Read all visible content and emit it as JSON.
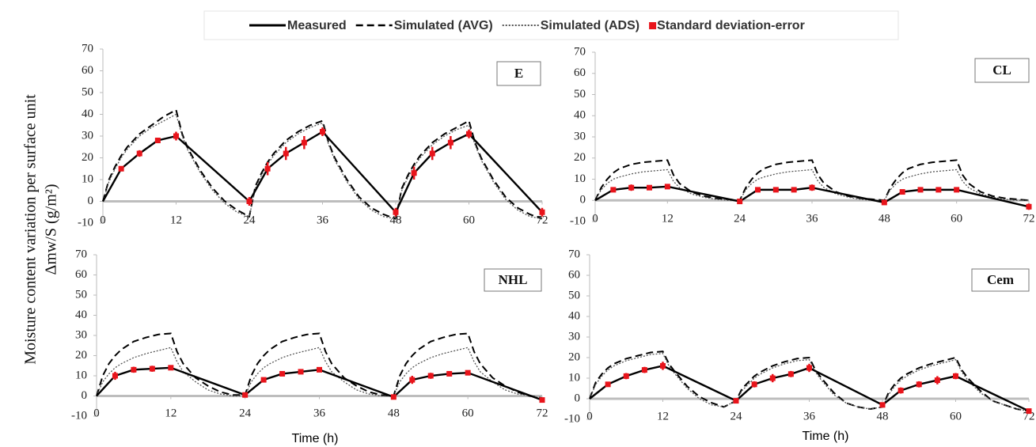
{
  "chart_data": [
    {
      "type": "line",
      "panel_label": "E",
      "ylabel": [
        "Moisture content variation per surface unit",
        "Δmw/S (g/m²)"
      ],
      "xlim": [
        0,
        72
      ],
      "xticks": [
        0,
        12,
        24,
        36,
        48,
        60,
        72
      ],
      "ylim": [
        -10,
        70
      ],
      "yticks": [
        -10,
        0,
        10,
        20,
        30,
        40,
        50,
        60,
        70
      ],
      "x": [
        0,
        1,
        2,
        3,
        4,
        6,
        8,
        10,
        12,
        13,
        14,
        16,
        18,
        20,
        22,
        24,
        25,
        26,
        27,
        28,
        30,
        32,
        34,
        36,
        37,
        38,
        40,
        42,
        44,
        46,
        48,
        49,
        50,
        51,
        52,
        54,
        56,
        58,
        60,
        61,
        62,
        64,
        66,
        68,
        70,
        72
      ],
      "series": [
        {
          "name": "Measured",
          "color": "#000000",
          "style": "solid",
          "x": [
            0,
            3,
            6,
            9,
            12,
            24,
            27,
            30,
            33,
            36,
            48,
            51,
            54,
            57,
            60,
            72
          ],
          "values": [
            0,
            15,
            22,
            28,
            30,
            0,
            15,
            22,
            27,
            32,
            -5,
            13,
            22,
            27,
            31,
            -5
          ]
        },
        {
          "name": "Simulated (AVG)",
          "color": "#000000",
          "style": "dashed",
          "values": [
            0,
            10,
            16,
            21,
            25,
            31,
            35,
            39,
            42,
            31,
            24,
            14,
            6,
            0,
            -4,
            -7,
            7,
            13,
            18,
            22,
            28,
            32,
            35,
            37,
            27,
            20,
            10,
            2,
            -3,
            -6,
            -8,
            6,
            12,
            17,
            21,
            27,
            31,
            34,
            37,
            27,
            20,
            10,
            2,
            -3,
            -6,
            -8
          ]
        },
        {
          "name": "Simulated (ADS)",
          "color": "#555555",
          "style": "dotted",
          "values": [
            0,
            9,
            15,
            20,
            24,
            30,
            34,
            37,
            40,
            30,
            23,
            13,
            5,
            -1,
            -5,
            -7,
            6,
            12,
            17,
            21,
            27,
            31,
            34,
            36,
            26,
            19,
            9,
            1,
            -4,
            -7,
            -8,
            5,
            11,
            16,
            20,
            26,
            30,
            33,
            35,
            26,
            19,
            9,
            1,
            -4,
            -7,
            -8
          ]
        },
        {
          "name": "Standard deviation-error",
          "color": "#e8141b",
          "style": "errorbar",
          "x": [
            0,
            3,
            6,
            9,
            12,
            24,
            27,
            30,
            33,
            36,
            48,
            51,
            54,
            57,
            60,
            72
          ],
          "values": [
            0,
            1,
            1.5,
            1,
            2,
            2,
            3,
            3,
            3,
            2,
            2,
            3,
            3,
            3,
            2,
            2
          ]
        }
      ]
    },
    {
      "type": "line",
      "panel_label": "CL",
      "xlim": [
        0,
        72
      ],
      "xticks": [
        0,
        12,
        24,
        36,
        48,
        60,
        72
      ],
      "ylim": [
        -10,
        70
      ],
      "yticks": [
        -10,
        0,
        10,
        20,
        30,
        40,
        50,
        60,
        70
      ],
      "x": [
        0,
        1,
        2,
        3,
        4,
        6,
        8,
        10,
        12,
        13,
        14,
        16,
        18,
        20,
        22,
        24,
        25,
        26,
        27,
        28,
        30,
        32,
        34,
        36,
        37,
        38,
        40,
        42,
        44,
        46,
        48,
        49,
        50,
        51,
        52,
        54,
        56,
        58,
        60,
        61,
        62,
        64,
        66,
        68,
        70,
        72
      ],
      "series": [
        {
          "name": "Measured",
          "color": "#000000",
          "style": "solid",
          "x": [
            0,
            3,
            6,
            9,
            12,
            24,
            27,
            30,
            33,
            36,
            48,
            51,
            54,
            57,
            60,
            72
          ],
          "values": [
            0,
            5,
            6,
            6,
            6.5,
            -0.5,
            5,
            5,
            5,
            6,
            -1,
            4,
            5,
            5,
            5,
            -3
          ]
        },
        {
          "name": "Simulated (AVG)",
          "color": "#000000",
          "style": "dashed",
          "values": [
            0,
            6,
            10,
            13,
            15,
            17,
            18,
            18.5,
            19,
            12,
            8,
            4,
            2,
            1,
            0.5,
            0,
            6,
            10,
            13,
            15,
            17,
            18,
            18.5,
            19,
            12,
            8,
            4,
            2,
            1,
            0.5,
            0,
            6,
            10,
            13,
            15,
            17,
            18,
            18.5,
            19,
            12,
            8,
            4,
            2,
            1,
            0.5,
            0
          ]
        },
        {
          "name": "Simulated (ADS)",
          "color": "#555555",
          "style": "dotted",
          "values": [
            0,
            5,
            8,
            10,
            11,
            12.5,
            13.5,
            14,
            14.5,
            9,
            6,
            3,
            1.5,
            0.5,
            0,
            0,
            5,
            8,
            10,
            11,
            12.5,
            13.5,
            14,
            14.5,
            9,
            6,
            3,
            1.5,
            0.5,
            0,
            0,
            5,
            8,
            10,
            11,
            12.5,
            13.5,
            14,
            14.5,
            9,
            6,
            3,
            1.5,
            0.5,
            0,
            0
          ]
        },
        {
          "name": "Standard deviation-error",
          "color": "#e8141b",
          "style": "errorbar",
          "x": [
            0,
            3,
            6,
            9,
            12,
            24,
            27,
            30,
            33,
            36,
            48,
            51,
            54,
            57,
            60,
            72
          ],
          "values": [
            0,
            1,
            1.5,
            1,
            1,
            1,
            1,
            1,
            1,
            1.5,
            1,
            1,
            1,
            1,
            1,
            1.5
          ]
        }
      ]
    },
    {
      "type": "line",
      "panel_label": "NHL",
      "xlabel": "Time (h)",
      "xlim": [
        0,
        72
      ],
      "xticks": [
        0,
        12,
        24,
        36,
        48,
        60,
        72
      ],
      "ylim": [
        -10,
        70
      ],
      "yticks": [
        -10,
        0,
        10,
        20,
        30,
        40,
        50,
        60,
        70
      ],
      "x": [
        0,
        1,
        2,
        3,
        4,
        6,
        8,
        10,
        12,
        13,
        14,
        16,
        18,
        20,
        22,
        24,
        25,
        26,
        27,
        28,
        30,
        32,
        34,
        36,
        37,
        38,
        40,
        42,
        44,
        46,
        48,
        49,
        50,
        51,
        52,
        54,
        56,
        58,
        60,
        61,
        62,
        64,
        66,
        68,
        70,
        72
      ],
      "series": [
        {
          "name": "Measured",
          "color": "#000000",
          "style": "solid",
          "x": [
            0,
            3,
            6,
            9,
            12,
            24,
            27,
            30,
            33,
            36,
            48,
            51,
            54,
            57,
            60,
            72
          ],
          "values": [
            0,
            10,
            13,
            13.5,
            14,
            0.5,
            8,
            11,
            12,
            13,
            -0.5,
            8,
            10,
            11,
            11.5,
            -2
          ]
        },
        {
          "name": "Simulated (AVG)",
          "color": "#000000",
          "style": "dashed",
          "values": [
            0,
            10,
            16,
            20,
            23,
            27,
            29,
            30.5,
            31,
            22,
            16,
            9,
            5,
            2,
            0.5,
            0.5,
            10,
            16,
            20,
            23,
            27,
            29,
            30.5,
            31,
            22,
            16,
            9,
            5,
            2,
            0.5,
            0,
            10,
            16,
            20,
            23,
            27,
            29,
            30.5,
            31,
            22,
            16,
            9,
            5,
            2,
            0,
            -1
          ]
        },
        {
          "name": "Simulated (ADS)",
          "color": "#555555",
          "style": "dotted",
          "values": [
            0,
            7,
            11,
            14,
            16,
            19,
            21,
            22.5,
            24,
            17,
            12,
            7,
            3,
            1,
            0,
            0,
            7,
            11,
            14,
            16,
            19,
            21,
            22.5,
            24,
            17,
            12,
            7,
            3,
            1,
            0,
            0,
            7,
            11,
            14,
            16,
            19,
            21,
            22.5,
            24,
            17,
            12,
            7,
            3,
            1,
            0,
            -1
          ]
        },
        {
          "name": "Standard deviation-error",
          "color": "#e8141b",
          "style": "errorbar",
          "x": [
            0,
            3,
            6,
            9,
            12,
            24,
            27,
            30,
            33,
            36,
            48,
            51,
            54,
            57,
            60,
            72
          ],
          "values": [
            0,
            2,
            1.5,
            1.5,
            1,
            1,
            1,
            1,
            1,
            1,
            1,
            2,
            1.5,
            1,
            1,
            1
          ]
        }
      ]
    },
    {
      "type": "line",
      "panel_label": "Cem",
      "xlabel": "Time (h)",
      "xlim": [
        0,
        72
      ],
      "xticks": [
        0,
        12,
        24,
        36,
        48,
        60,
        72
      ],
      "ylim": [
        -10,
        70
      ],
      "yticks": [
        -10,
        0,
        10,
        20,
        30,
        40,
        50,
        60,
        70
      ],
      "x": [
        0,
        1,
        2,
        3,
        4,
        6,
        8,
        10,
        12,
        13,
        14,
        16,
        18,
        20,
        22,
        24,
        25,
        26,
        27,
        28,
        30,
        32,
        34,
        36,
        37,
        38,
        40,
        42,
        44,
        46,
        48,
        49,
        50,
        51,
        52,
        54,
        56,
        58,
        60,
        61,
        62,
        64,
        66,
        68,
        70,
        72
      ],
      "series": [
        {
          "name": "Measured",
          "color": "#000000",
          "style": "solid",
          "x": [
            0,
            3,
            6,
            9,
            12,
            24,
            27,
            30,
            33,
            36,
            48,
            51,
            54,
            57,
            60,
            72
          ],
          "values": [
            0,
            7,
            11,
            14,
            16,
            -1,
            7,
            10,
            12,
            15,
            -3,
            4,
            7,
            9,
            11,
            -6
          ]
        },
        {
          "name": "Simulated (AVG)",
          "color": "#000000",
          "style": "dashed",
          "values": [
            0,
            8,
            12,
            15,
            17,
            19.5,
            21,
            22.5,
            23,
            17,
            13,
            6,
            1,
            -2,
            -4,
            -1,
            5,
            8,
            11,
            13,
            16,
            18,
            19.5,
            20,
            14,
            10,
            3,
            -2,
            -4,
            -5,
            -4,
            3,
            7,
            10,
            12,
            15,
            17,
            18.5,
            20,
            14,
            10,
            4,
            -1,
            -3,
            -5,
            -6
          ]
        },
        {
          "name": "Simulated (ADS)",
          "color": "#555555",
          "style": "dotted",
          "values": [
            0,
            7,
            11,
            14,
            16,
            18.5,
            20,
            21.5,
            22,
            16,
            12,
            5,
            0,
            -3,
            -4,
            -1,
            4,
            7,
            10,
            12,
            15,
            17,
            18.5,
            19,
            13,
            9,
            2,
            -2,
            -4,
            -5,
            -4,
            2,
            6,
            9,
            11,
            14,
            16,
            17.5,
            19,
            13,
            9,
            3,
            -1,
            -3,
            -5,
            -6
          ]
        },
        {
          "name": "Standard deviation-error",
          "color": "#e8141b",
          "style": "errorbar",
          "x": [
            0,
            3,
            6,
            9,
            12,
            24,
            27,
            30,
            33,
            36,
            48,
            51,
            54,
            57,
            60,
            72
          ],
          "values": [
            0,
            1,
            1.5,
            1.5,
            2,
            1,
            1.5,
            2,
            1.5,
            2,
            1,
            1.5,
            1.5,
            2,
            1.5,
            1
          ]
        }
      ]
    }
  ]
}
